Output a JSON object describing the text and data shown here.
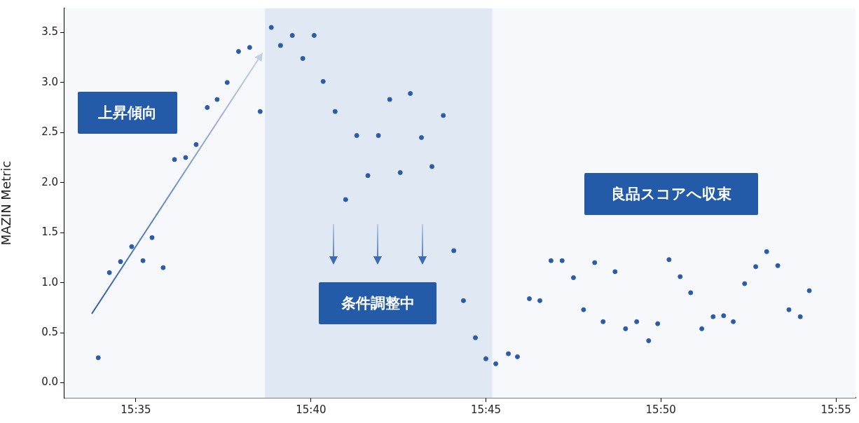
{
  "chart_data": {
    "type": "scatter",
    "ylabel": "MAZIN Metric",
    "x": [
      15.5654,
      15.5707,
      15.576,
      15.5813,
      15.5867,
      15.591,
      15.5963,
      15.6017,
      15.607,
      15.612,
      15.6173,
      15.622,
      15.6268,
      15.6322,
      15.6375,
      15.6425,
      15.6478,
      15.6522,
      15.6578,
      15.6628,
      15.6682,
      15.6725,
      15.6782,
      15.6832,
      15.6885,
      15.6938,
      15.6988,
      15.7042,
      15.7092,
      15.714,
      15.7193,
      15.7243,
      15.7297,
      15.7347,
      15.7393,
      15.745,
      15.75,
      15.7547,
      15.7607,
      15.765,
      15.7707,
      15.7757,
      15.781,
      15.7863,
      15.7917,
      15.7965,
      15.8018,
      15.8058,
      15.8115,
      15.8165,
      15.8218,
      15.8275,
      15.8318,
      15.8372,
      15.8425,
      15.8475,
      15.8528,
      15.8582,
      15.8632,
      15.8678,
      15.8732,
      15.8785,
      15.8837,
      15.889,
      15.8943,
      15.8997,
      15.904
    ],
    "series": [
      {
        "color": "#2a5ca8",
        "values": [
          0.25,
          1.1,
          1.21,
          1.36,
          1.22,
          1.45,
          1.15,
          2.23,
          2.25,
          2.38,
          2.75,
          2.83,
          3.0,
          3.31,
          3.35,
          2.71,
          3.55,
          3.37,
          3.47,
          3.24,
          3.47,
          3.01,
          2.71,
          1.83,
          2.47,
          2.07,
          2.47,
          2.83,
          2.1,
          2.89,
          2.45,
          2.16,
          2.67,
          1.32,
          0.82,
          0.45,
          0.24,
          0.19,
          0.29,
          0.26,
          0.84,
          0.82,
          1.22,
          1.22,
          1.05,
          0.73,
          1.2,
          0.61,
          1.11,
          0.54,
          0.61,
          0.42,
          0.59,
          1.23,
          1.06,
          0.9,
          0.54,
          0.66,
          0.67,
          0.61,
          0.99,
          1.16,
          1.31,
          1.17,
          0.73,
          0.66,
          0.92
        ]
      }
    ],
    "xlim": [
      15.5493,
      15.926
    ],
    "xticks": [
      {
        "value": 15.5833,
        "label": "15:35"
      },
      {
        "value": 15.6667,
        "label": "15:40"
      },
      {
        "value": 15.75,
        "label": "15:45"
      },
      {
        "value": 15.8333,
        "label": "15:50"
      },
      {
        "value": 15.9167,
        "label": "15:55"
      }
    ],
    "ylim": [
      -0.15,
      3.74
    ],
    "yticks": [
      {
        "value": 0,
        "label": "0.0"
      },
      0.5,
      {
        "value": 1,
        "label": "1.0"
      },
      1.5,
      {
        "value": 2,
        "label": "2.0"
      },
      2.5,
      {
        "value": 3,
        "label": "3.0"
      },
      3.5
    ],
    "bands": [
      {
        "axis": "x",
        "from": 15.6448,
        "to": 15.753,
        "color": "#e0e8f3"
      }
    ],
    "annotations": [
      "上昇傾向",
      "条件調整中",
      "良品スコアへ収束"
    ],
    "legend": false,
    "marker": "circle"
  }
}
